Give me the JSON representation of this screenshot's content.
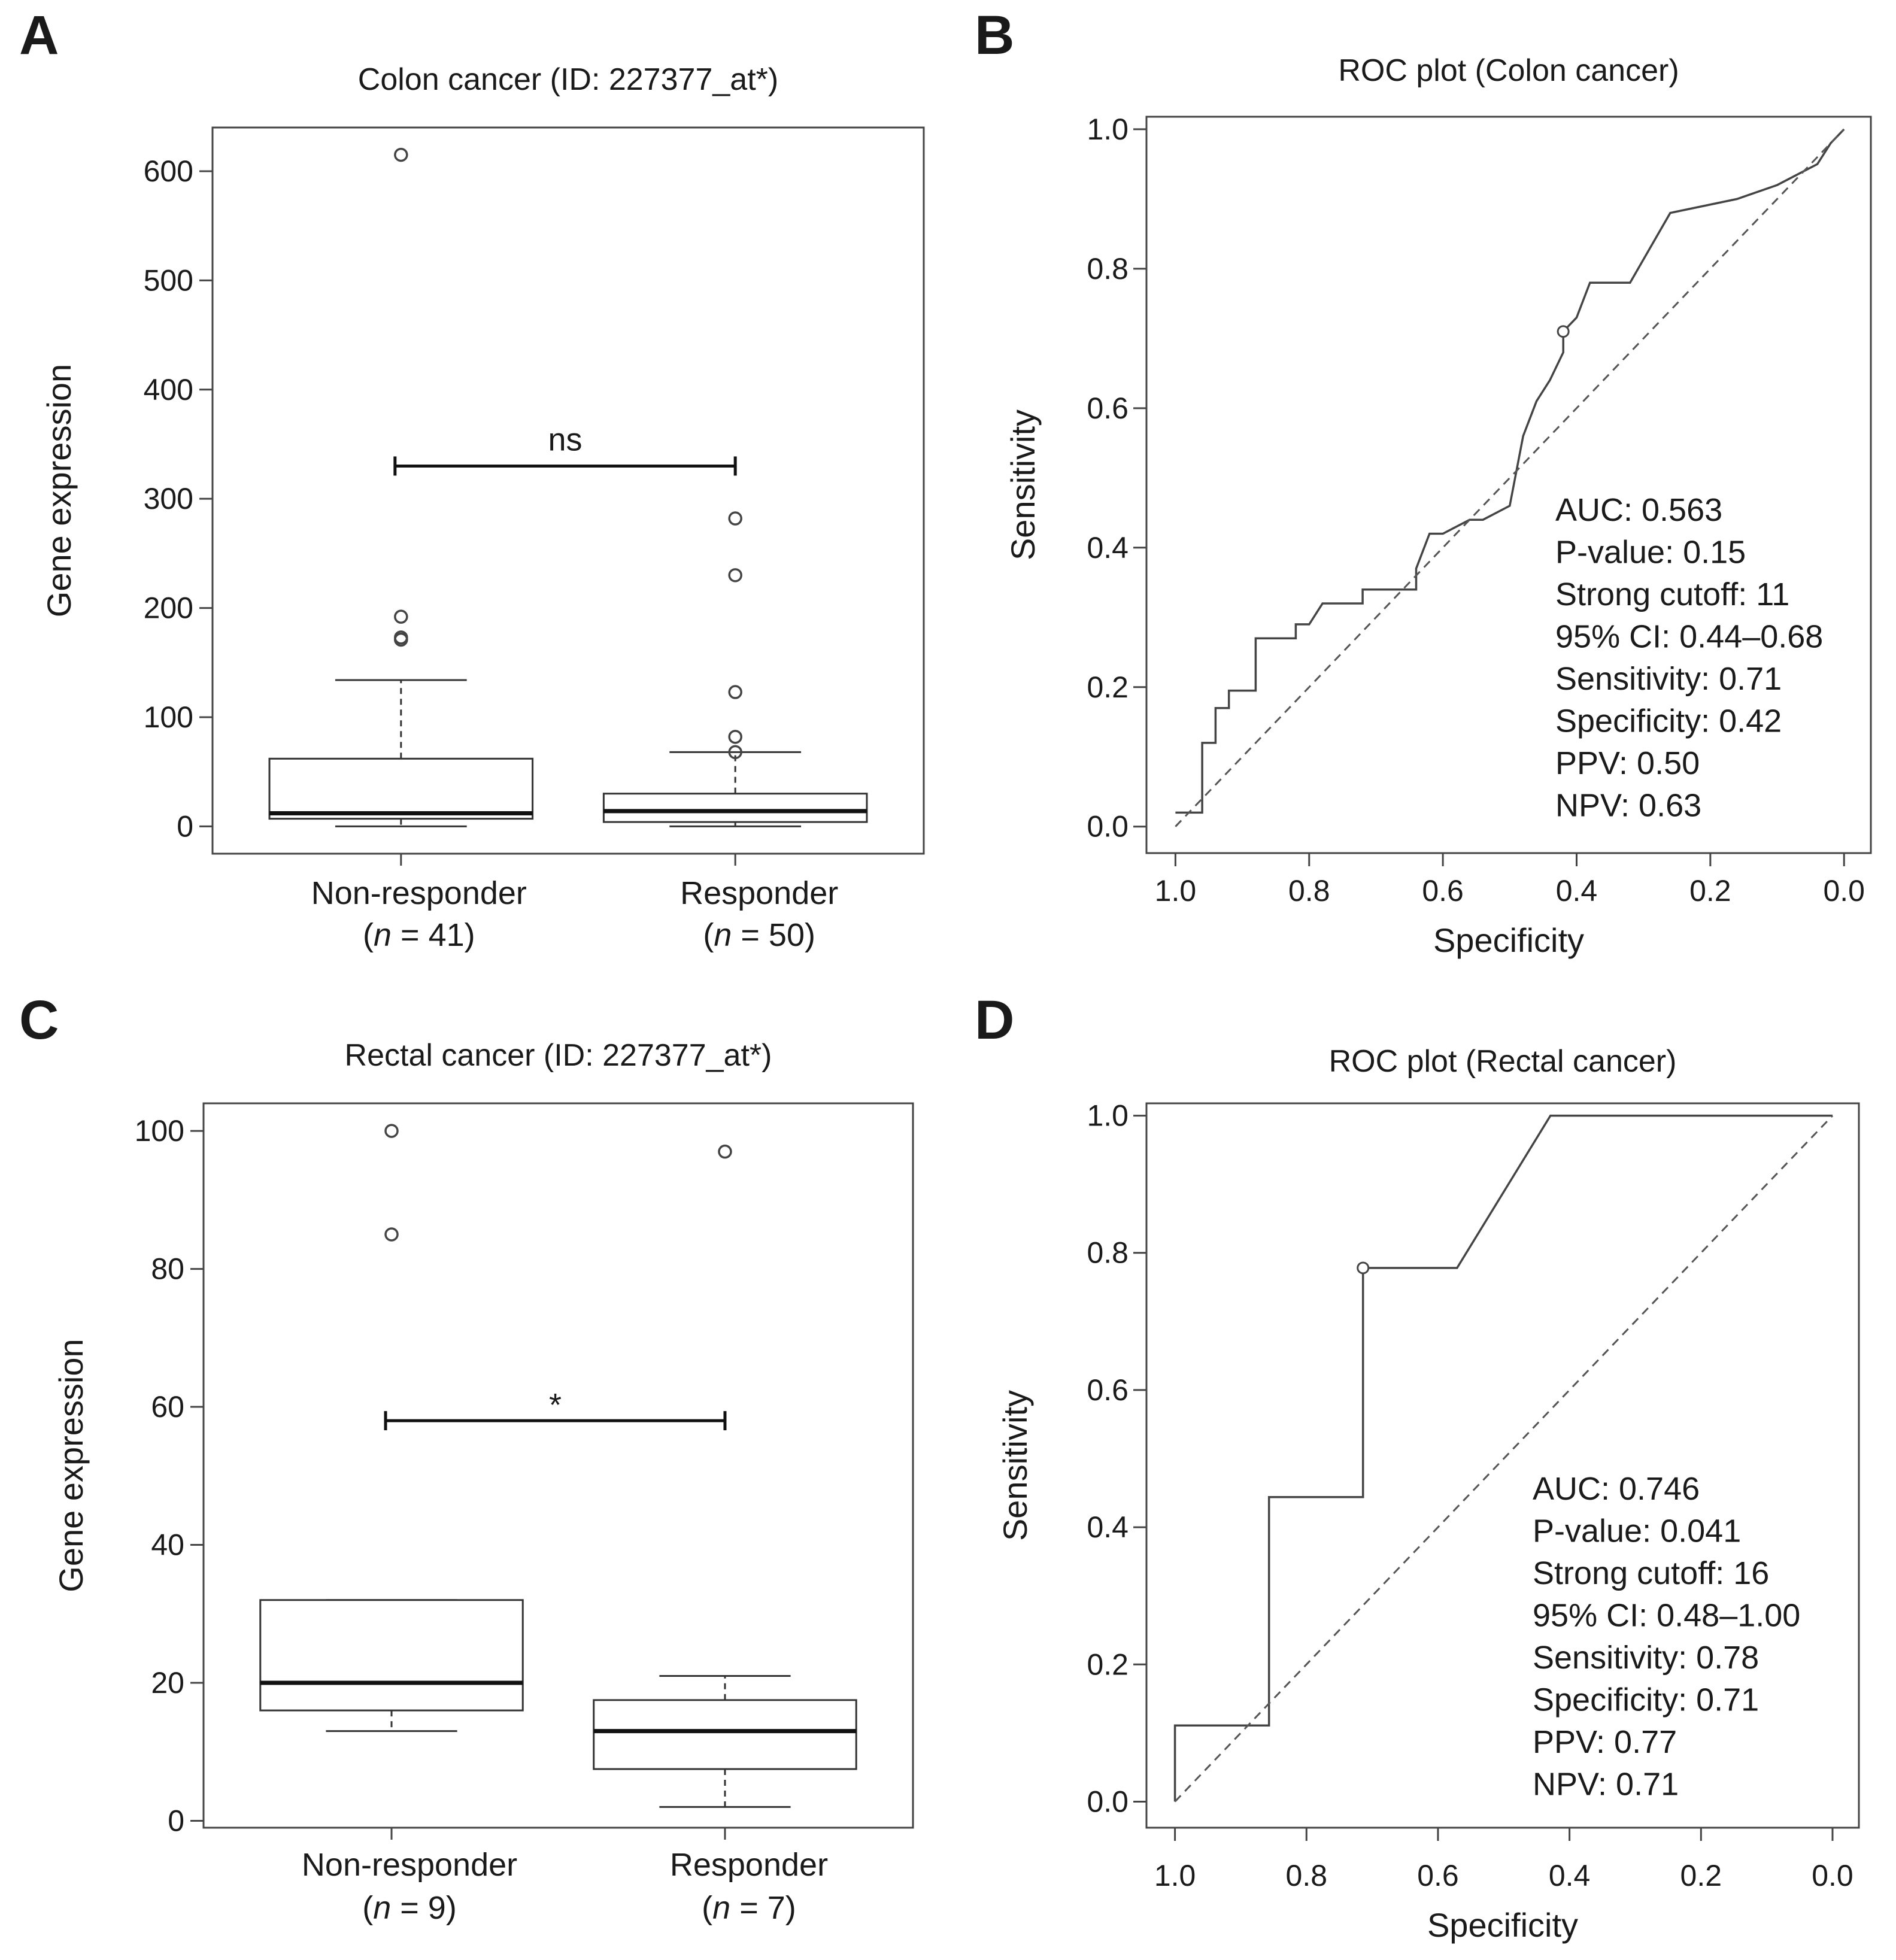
{
  "chart_data": [
    {
      "panel": "A",
      "type": "box",
      "title": "Colon cancer (ID: 227377_at*)",
      "xlabel": "",
      "ylabel": "Gene expression",
      "ylim": [
        -25,
        640
      ],
      "yticks": [
        0,
        100,
        200,
        300,
        400,
        500,
        600
      ],
      "categories": [
        {
          "name": "Non-responder",
          "n_text": "(n = 41)",
          "n_prefix": "(",
          "n_italic": "n",
          "n_suffix": " = 41)"
        },
        {
          "name": "Responder",
          "n_text": "(n = 50)",
          "n_prefix": "(",
          "n_italic": "n",
          "n_suffix": " = 50)"
        }
      ],
      "boxes": [
        {
          "q1": 7,
          "median": 12,
          "q3": 62,
          "whisker_low": 0,
          "whisker_high": 134,
          "outliers": [
            615,
            192,
            173,
            171
          ]
        },
        {
          "q1": 4,
          "median": 14,
          "q3": 30,
          "whisker_low": 0,
          "whisker_high": 68,
          "outliers": [
            282,
            230,
            123,
            82,
            68
          ]
        }
      ],
      "significance": {
        "label": "ns",
        "y": 330
      }
    },
    {
      "panel": "B",
      "type": "line",
      "title": "ROC plot (Colon cancer)",
      "xlabel": "Specificity",
      "ylabel": "Sensitivity",
      "xlim": [
        1.0,
        0.0
      ],
      "ylim": [
        0.0,
        1.0
      ],
      "xticks": [
        1.0,
        0.8,
        0.6,
        0.4,
        0.2,
        0.0
      ],
      "yticks": [
        0.0,
        0.2,
        0.4,
        0.6,
        0.8,
        1.0
      ],
      "series": [
        {
          "name": "ROC",
          "specificity": [
            1.0,
            0.96,
            0.96,
            0.94,
            0.94,
            0.92,
            0.92,
            0.88,
            0.88,
            0.82,
            0.82,
            0.8,
            0.78,
            0.72,
            0.72,
            0.64,
            0.64,
            0.62,
            0.6,
            0.56,
            0.54,
            0.5,
            0.48,
            0.46,
            0.44,
            0.42,
            0.42,
            0.4,
            0.38,
            0.32,
            0.26,
            0.16,
            0.1,
            0.06,
            0.04,
            0.02,
            0.0
          ],
          "sensitivity": [
            0.02,
            0.02,
            0.12,
            0.12,
            0.17,
            0.17,
            0.195,
            0.195,
            0.27,
            0.27,
            0.29,
            0.29,
            0.32,
            0.32,
            0.34,
            0.34,
            0.37,
            0.42,
            0.42,
            0.44,
            0.44,
            0.46,
            0.56,
            0.61,
            0.64,
            0.68,
            0.71,
            0.73,
            0.78,
            0.78,
            0.88,
            0.9,
            0.92,
            0.94,
            0.95,
            0.98,
            1.0
          ]
        },
        {
          "name": "chance",
          "specificity": [
            1.0,
            0.0
          ],
          "sensitivity": [
            0.0,
            1.0
          ]
        }
      ],
      "cutoff_point": {
        "specificity": 0.42,
        "sensitivity": 0.71
      },
      "annotations": [
        "AUC: 0.563",
        "P-value: 0.15",
        "Strong cutoff: 11",
        "95% CI: 0.44–0.68",
        "Sensitivity: 0.71",
        "Specificity: 0.42",
        "PPV: 0.50",
        "NPV: 0.63"
      ]
    },
    {
      "panel": "C",
      "type": "box",
      "title": "Rectal cancer (ID: 227377_at*)",
      "xlabel": "",
      "ylabel": "Gene expression",
      "ylim": [
        -1,
        104
      ],
      "yticks": [
        0,
        20,
        40,
        60,
        80,
        100
      ],
      "categories": [
        {
          "name": "Non-responder",
          "n_text": "(n = 9)",
          "n_prefix": "(",
          "n_italic": "n",
          "n_suffix": " = 9)"
        },
        {
          "name": "Responder",
          "n_text": "(n = 7)",
          "n_prefix": "(",
          "n_italic": "n",
          "n_suffix": " = 7)"
        }
      ],
      "boxes": [
        {
          "q1": 16,
          "median": 20,
          "q3": 32,
          "whisker_low": 13,
          "whisker_high": 32,
          "outliers": [
            100,
            85
          ]
        },
        {
          "q1": 7.5,
          "median": 13,
          "q3": 17.5,
          "whisker_low": 2,
          "whisker_high": 21,
          "outliers": [
            97
          ]
        }
      ],
      "significance": {
        "label": "*",
        "y": 58
      }
    },
    {
      "panel": "D",
      "type": "line",
      "title": "ROC plot (Rectal cancer)",
      "xlabel": "Specificity",
      "ylabel": "Sensitivity",
      "xlim": [
        1.0,
        0.0
      ],
      "ylim": [
        0.0,
        1.0
      ],
      "xticks": [
        1.0,
        0.8,
        0.6,
        0.4,
        0.2,
        0.0
      ],
      "yticks": [
        0.0,
        0.2,
        0.4,
        0.6,
        0.8,
        1.0
      ],
      "series": [
        {
          "name": "ROC",
          "specificity": [
            1.0,
            1.0,
            0.857,
            0.857,
            0.714,
            0.714,
            0.571,
            0.429,
            0.0
          ],
          "sensitivity": [
            0.0,
            0.111,
            0.111,
            0.444,
            0.444,
            0.778,
            0.778,
            1.0,
            1.0
          ]
        },
        {
          "name": "chance",
          "specificity": [
            1.0,
            0.0
          ],
          "sensitivity": [
            0.0,
            1.0
          ]
        }
      ],
      "cutoff_point": {
        "specificity": 0.714,
        "sensitivity": 0.778
      },
      "annotations": [
        "AUC: 0.746",
        "P-value: 0.041",
        "Strong cutoff: 16",
        "95% CI: 0.48–1.00",
        "Sensitivity: 0.78",
        "Specificity: 0.71",
        "PPV: 0.77",
        "NPV: 0.71"
      ]
    }
  ]
}
